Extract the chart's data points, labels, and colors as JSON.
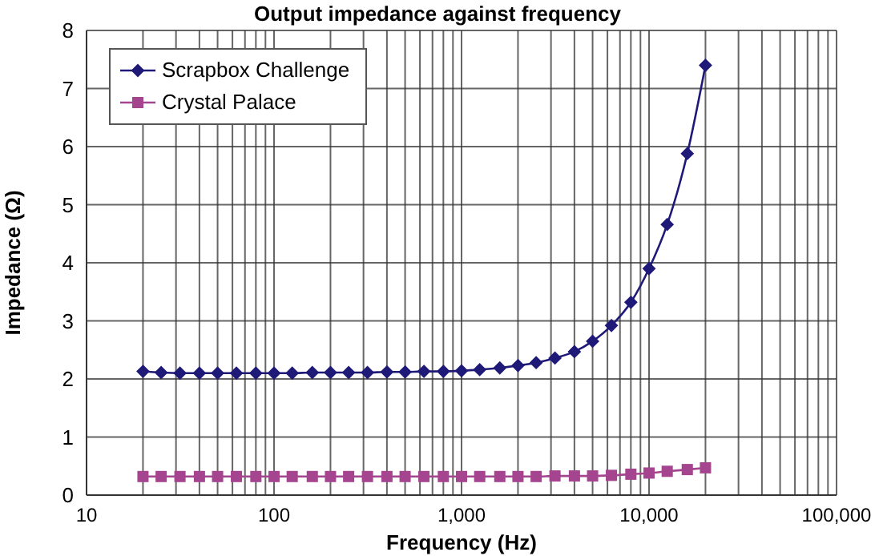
{
  "chart_data": {
    "type": "line",
    "title": "Output impedance against frequency",
    "xlabel": "Frequency (Hz)",
    "ylabel": "Impedance (Ω)",
    "x": [
      20,
      25,
      31.5,
      40,
      50,
      63,
      80,
      100,
      125,
      160,
      200,
      250,
      315,
      400,
      500,
      630,
      800,
      1000,
      1250,
      1600,
      2000,
      2500,
      3150,
      4000,
      5000,
      6300,
      8000,
      10000,
      12500,
      16000,
      20000
    ],
    "series": [
      {
        "name": "Scrapbox Challenge",
        "color": "#1f1a78",
        "marker": "diamond",
        "values": [
          2.13,
          2.11,
          2.1,
          2.1,
          2.1,
          2.1,
          2.1,
          2.1,
          2.1,
          2.11,
          2.11,
          2.11,
          2.11,
          2.12,
          2.12,
          2.13,
          2.13,
          2.14,
          2.16,
          2.19,
          2.23,
          2.28,
          2.36,
          2.47,
          2.65,
          2.92,
          3.32,
          3.9,
          4.66,
          5.88,
          7.4
        ]
      },
      {
        "name": "Crystal Palace",
        "color": "#a5448f",
        "marker": "square",
        "values": [
          0.32,
          0.32,
          0.32,
          0.32,
          0.32,
          0.32,
          0.32,
          0.32,
          0.32,
          0.32,
          0.32,
          0.32,
          0.32,
          0.32,
          0.32,
          0.32,
          0.32,
          0.32,
          0.32,
          0.32,
          0.32,
          0.32,
          0.33,
          0.33,
          0.33,
          0.34,
          0.36,
          0.38,
          0.41,
          0.44,
          0.47
        ]
      }
    ],
    "log": "x",
    "xlim": [
      10,
      100000
    ],
    "xticks": [
      10,
      {
        "value": 20,
        "label": null
      },
      {
        "value": 30,
        "label": null
      },
      {
        "value": 40,
        "label": null
      },
      {
        "value": 50,
        "label": null
      },
      {
        "value": 60,
        "label": null
      },
      {
        "value": 70,
        "label": null
      },
      {
        "value": 80,
        "label": null
      },
      {
        "value": 90,
        "label": null
      },
      100,
      {
        "value": 200,
        "label": null
      },
      {
        "value": 300,
        "label": null
      },
      {
        "value": 400,
        "label": null
      },
      {
        "value": 500,
        "label": null
      },
      {
        "value": 600,
        "label": null
      },
      {
        "value": 700,
        "label": null
      },
      {
        "value": 800,
        "label": null
      },
      {
        "value": 900,
        "label": null
      },
      {
        "value": 1000,
        "label": "1,000"
      },
      {
        "value": 2000,
        "label": null
      },
      {
        "value": 3000,
        "label": null
      },
      {
        "value": 4000,
        "label": null
      },
      {
        "value": 5000,
        "label": null
      },
      {
        "value": 6000,
        "label": null
      },
      {
        "value": 7000,
        "label": null
      },
      {
        "value": 8000,
        "label": null
      },
      {
        "value": 9000,
        "label": null
      },
      {
        "value": 10000,
        "label": "10,000"
      },
      {
        "value": 20000,
        "label": null
      },
      {
        "value": 30000,
        "label": null
      },
      {
        "value": 40000,
        "label": null
      },
      {
        "value": 50000,
        "label": null
      },
      {
        "value": 60000,
        "label": null
      },
      {
        "value": 70000,
        "label": null
      },
      {
        "value": 80000,
        "label": null
      },
      {
        "value": 90000,
        "label": null
      },
      {
        "value": 100000,
        "label": "100,000"
      }
    ],
    "ylim": [
      0,
      8
    ],
    "yticks": [
      0,
      1,
      2,
      3,
      4,
      5,
      6,
      7,
      8
    ],
    "grid": true,
    "legend": "top left",
    "line_style": "solid"
  }
}
